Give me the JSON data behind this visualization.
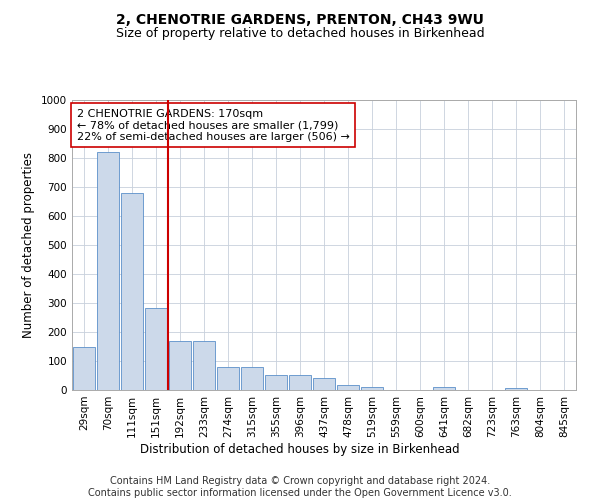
{
  "title": "2, CHENOTRIE GARDENS, PRENTON, CH43 9WU",
  "subtitle": "Size of property relative to detached houses in Birkenhead",
  "xlabel": "Distribution of detached houses by size in Birkenhead",
  "ylabel": "Number of detached properties",
  "categories": [
    "29sqm",
    "70sqm",
    "111sqm",
    "151sqm",
    "192sqm",
    "233sqm",
    "274sqm",
    "315sqm",
    "355sqm",
    "396sqm",
    "437sqm",
    "478sqm",
    "519sqm",
    "559sqm",
    "600sqm",
    "641sqm",
    "682sqm",
    "723sqm",
    "763sqm",
    "804sqm",
    "845sqm"
  ],
  "values": [
    148,
    820,
    680,
    283,
    170,
    170,
    78,
    78,
    52,
    52,
    40,
    18,
    12,
    0,
    0,
    10,
    0,
    0,
    8,
    0,
    0
  ],
  "bar_color": "#ccd9ea",
  "bar_edge_color": "#5b8fc9",
  "vline_color": "#cc0000",
  "vline_pos": 3.5,
  "annotation_text": "2 CHENOTRIE GARDENS: 170sqm\n← 78% of detached houses are smaller (1,799)\n22% of semi-detached houses are larger (506) →",
  "annotation_box_color": "#ffffff",
  "annotation_box_edge": "#cc0000",
  "ylim": [
    0,
    1000
  ],
  "yticks": [
    0,
    100,
    200,
    300,
    400,
    500,
    600,
    700,
    800,
    900,
    1000
  ],
  "grid_color": "#c8d0dc",
  "footer_line1": "Contains HM Land Registry data © Crown copyright and database right 2024.",
  "footer_line2": "Contains public sector information licensed under the Open Government Licence v3.0.",
  "title_fontsize": 10,
  "subtitle_fontsize": 9,
  "xlabel_fontsize": 8.5,
  "ylabel_fontsize": 8.5,
  "tick_fontsize": 7.5,
  "annotation_fontsize": 8,
  "footer_fontsize": 7
}
